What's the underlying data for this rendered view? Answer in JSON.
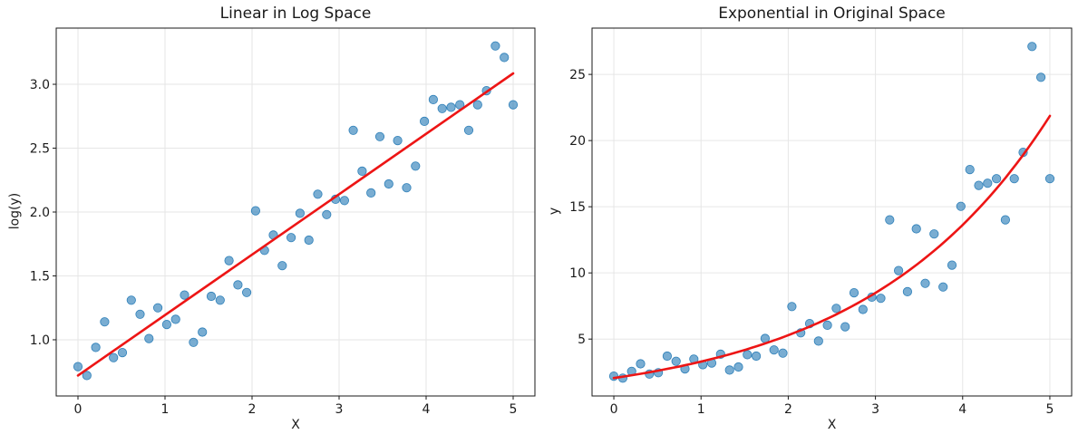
{
  "style": {
    "background": "#ffffff",
    "grid_color": "#e6e6e6",
    "spine_color": "#1a1a1a",
    "text_color": "#1a1a1a"
  },
  "chart_data": [
    {
      "id": "log-space-chart",
      "type": "scatter",
      "title": "Linear in Log Space",
      "xlabel": "X",
      "ylabel": "log(y)",
      "xlim": [
        -0.25,
        5.25
      ],
      "ylim": [
        0.56,
        3.44
      ],
      "grid": true,
      "legend": "none",
      "xticks": {
        "values": [
          0,
          1,
          2,
          3,
          4,
          5
        ],
        "labels": [
          "0",
          "1",
          "2",
          "3",
          "4",
          "5"
        ]
      },
      "yticks": {
        "values": [
          1.0,
          1.5,
          2.0,
          2.5,
          3.0
        ],
        "labels": [
          "1.0",
          "1.5",
          "2.0",
          "2.5",
          "3.0"
        ]
      },
      "marker": {
        "color": "#1f77b4",
        "alpha": 0.6,
        "radius": 4.7
      },
      "fit_line": {
        "color": "#ed1515",
        "width": 2.6,
        "space": "linear",
        "x_start": 0,
        "x_end": 5,
        "intercept": 0.72,
        "slope": 0.473
      },
      "points": {
        "x": [
          0.0,
          0.102,
          0.204,
          0.306,
          0.408,
          0.51,
          0.612,
          0.714,
          0.816,
          0.918,
          1.02,
          1.122,
          1.224,
          1.327,
          1.429,
          1.531,
          1.633,
          1.735,
          1.837,
          1.939,
          2.041,
          2.143,
          2.245,
          2.347,
          2.449,
          2.551,
          2.653,
          2.755,
          2.857,
          2.959,
          3.061,
          3.163,
          3.265,
          3.367,
          3.469,
          3.571,
          3.673,
          3.776,
          3.878,
          3.98,
          4.082,
          4.184,
          4.286,
          4.388,
          4.49,
          4.592,
          4.694,
          4.796,
          4.898,
          5.0
        ],
        "y": [
          0.79,
          0.72,
          0.94,
          1.14,
          0.86,
          0.9,
          1.31,
          1.2,
          1.01,
          1.25,
          1.12,
          1.16,
          1.35,
          0.98,
          1.06,
          1.34,
          1.31,
          1.62,
          1.43,
          1.37,
          2.01,
          1.7,
          1.82,
          1.58,
          1.8,
          1.99,
          1.78,
          2.14,
          1.98,
          2.1,
          2.09,
          2.64,
          2.32,
          2.15,
          2.59,
          2.22,
          2.56,
          2.19,
          2.36,
          2.71,
          2.88,
          2.81,
          2.82,
          2.84,
          2.64,
          2.84,
          2.95,
          3.3,
          3.21,
          2.84
        ]
      }
    },
    {
      "id": "original-space-chart",
      "type": "scatter",
      "title": "Exponential in Original Space",
      "xlabel": "X",
      "ylabel": "y",
      "xlim": [
        -0.25,
        5.25
      ],
      "ylim": [
        0.7,
        28.5
      ],
      "grid": true,
      "legend": "none",
      "xticks": {
        "values": [
          0,
          1,
          2,
          3,
          4,
          5
        ],
        "labels": [
          "0",
          "1",
          "2",
          "3",
          "4",
          "5"
        ]
      },
      "yticks": {
        "values": [
          5,
          10,
          15,
          20,
          25
        ],
        "labels": [
          "5",
          "10",
          "15",
          "20",
          "25"
        ]
      },
      "marker": {
        "color": "#1f77b4",
        "alpha": 0.6,
        "radius": 4.7
      },
      "fit_line": {
        "color": "#ed1515",
        "width": 2.6,
        "space": "exp",
        "x_start": 0,
        "x_end": 5,
        "intercept": 0.72,
        "slope": 0.473
      },
      "points": {
        "x": [
          0.0,
          0.102,
          0.204,
          0.306,
          0.408,
          0.51,
          0.612,
          0.714,
          0.816,
          0.918,
          1.02,
          1.122,
          1.224,
          1.327,
          1.429,
          1.531,
          1.633,
          1.735,
          1.837,
          1.939,
          2.041,
          2.143,
          2.245,
          2.347,
          2.449,
          2.551,
          2.653,
          2.755,
          2.857,
          2.959,
          3.061,
          3.163,
          3.265,
          3.367,
          3.469,
          3.571,
          3.673,
          3.776,
          3.878,
          3.98,
          4.082,
          4.184,
          4.286,
          4.388,
          4.49,
          4.592,
          4.694,
          4.796,
          4.898,
          5.0
        ],
        "y": [
          2.2,
          2.05,
          2.56,
          3.13,
          2.36,
          2.46,
          3.71,
          3.32,
          2.75,
          3.49,
          3.06,
          3.19,
          3.86,
          2.66,
          2.89,
          3.82,
          3.71,
          5.05,
          4.18,
          3.94,
          7.46,
          5.47,
          6.17,
          4.85,
          6.05,
          7.32,
          5.93,
          8.5,
          7.24,
          8.17,
          8.08,
          14.01,
          10.18,
          8.58,
          13.33,
          9.21,
          12.94,
          8.94,
          10.59,
          15.03,
          17.81,
          16.61,
          16.78,
          17.12,
          14.01,
          17.12,
          19.11,
          27.11,
          24.78,
          17.12
        ]
      }
    }
  ]
}
